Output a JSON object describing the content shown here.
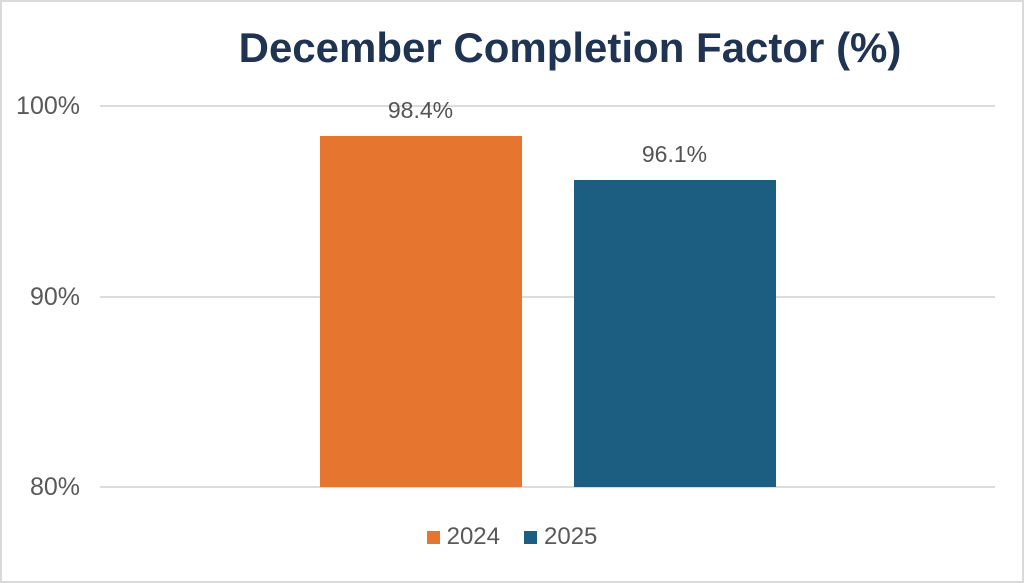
{
  "chart_data": {
    "type": "bar",
    "title": "December Completion Factor (%)",
    "categories": [
      "2024",
      "2025"
    ],
    "series": [
      {
        "name": "2024",
        "value": 98.4,
        "data_label": "98.4%",
        "color": "#e6752f"
      },
      {
        "name": "2025",
        "value": 96.1,
        "data_label": "96.1%",
        "color": "#1b5e81"
      }
    ],
    "ylim": [
      80,
      100
    ],
    "yticks": [
      {
        "value": 100,
        "label": "100%"
      },
      {
        "value": 90,
        "label": "90%"
      },
      {
        "value": 80,
        "label": "80%"
      }
    ],
    "grid": "horizontal",
    "legend_position": "bottom",
    "colors": {
      "title": "#1f3353",
      "axis_text": "#595959",
      "gridline": "#dcdcdc",
      "page_border": "#dadada"
    }
  }
}
